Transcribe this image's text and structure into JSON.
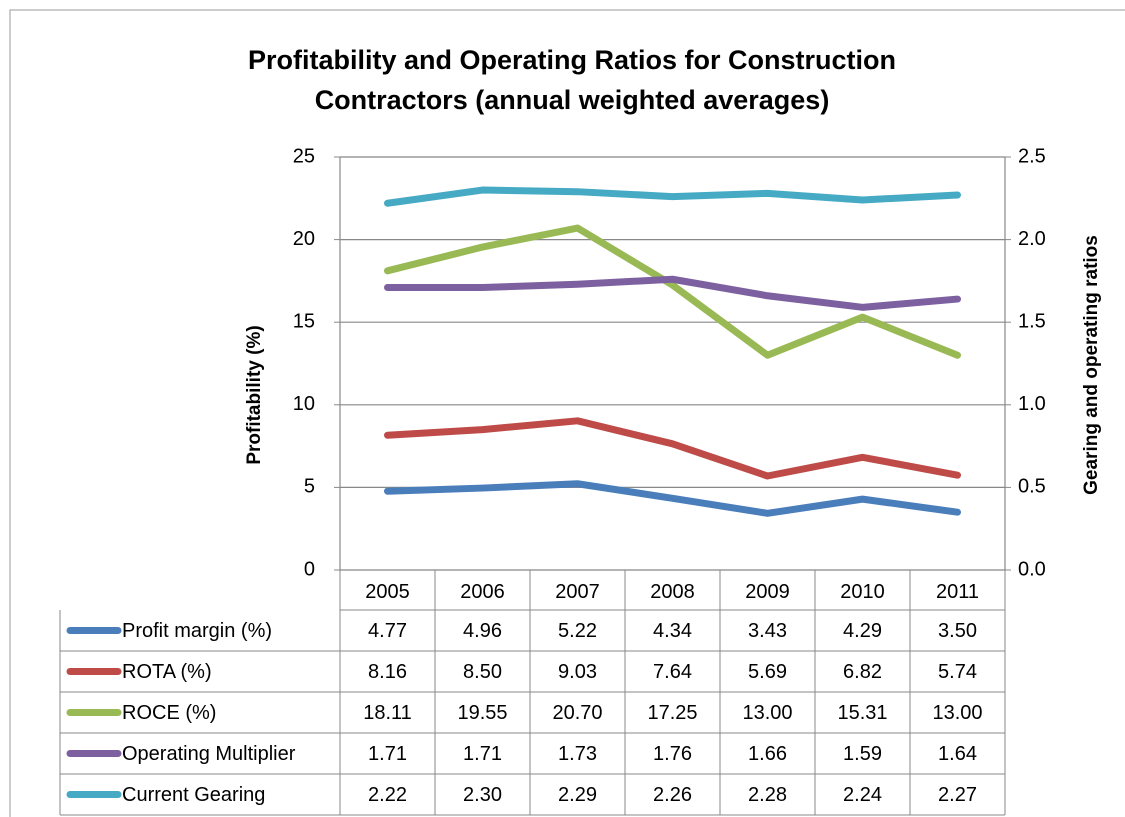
{
  "chart_data": {
    "type": "line",
    "title": "Profitability and Operating Ratios for Construction Contractors (annual weighted averages)",
    "y_label": "Profitability (%)",
    "y2_label": "Gearing and operating ratios",
    "categories": [
      "2005",
      "2006",
      "2007",
      "2008",
      "2009",
      "2010",
      "2011"
    ],
    "ylim": [
      0,
      25
    ],
    "yticks": [
      0,
      5,
      10,
      15,
      20,
      25
    ],
    "y2lim": [
      0,
      2.5
    ],
    "y2ticks": [
      {
        "value": 0,
        "label": "0.0"
      },
      0.5,
      {
        "value": 1,
        "label": "1.0"
      },
      1.5,
      {
        "value": 2,
        "label": "2.0"
      },
      2.5
    ],
    "grid": true,
    "series": [
      {
        "name": "Profit margin (%)",
        "color": "#4a7ebb",
        "values": [
          4.77,
          4.96,
          5.22,
          4.34,
          3.43,
          4.29,
          3.5
        ],
        "value_labels": [
          "4.77",
          "4.96",
          "5.22",
          "4.34",
          "3.43",
          "4.29",
          "3.50"
        ]
      },
      {
        "name": "ROTA (%)",
        "color": "#be4b48",
        "values": [
          8.16,
          8.5,
          9.03,
          7.64,
          5.69,
          6.82,
          5.74
        ],
        "value_labels": [
          "8.16",
          "8.50",
          "9.03",
          "7.64",
          "5.69",
          "6.82",
          "5.74"
        ]
      },
      {
        "name": "ROCE (%)",
        "color": "#98b954",
        "values": [
          18.11,
          19.55,
          20.7,
          17.25,
          13,
          15.31,
          13
        ],
        "value_labels": [
          "18.11",
          "19.55",
          "20.70",
          "17.25",
          "13.00",
          "15.31",
          "13.00"
        ]
      },
      {
        "name": "Operating Multiplier",
        "color": "#7d60a0",
        "axis": "y2",
        "values": [
          1.71,
          1.71,
          1.73,
          1.76,
          1.66,
          1.59,
          1.64
        ],
        "value_labels": [
          "1.71",
          "1.71",
          "1.73",
          "1.76",
          "1.66",
          "1.59",
          "1.64"
        ]
      },
      {
        "name": "Current Gearing",
        "color": "#46aac5",
        "axis": "y2",
        "values": [
          2.22,
          2.3,
          2.29,
          2.26,
          2.28,
          2.24,
          2.27
        ],
        "value_labels": [
          "2.22",
          "2.30",
          "2.29",
          "2.26",
          "2.28",
          "2.24",
          "2.27"
        ]
      }
    ]
  }
}
